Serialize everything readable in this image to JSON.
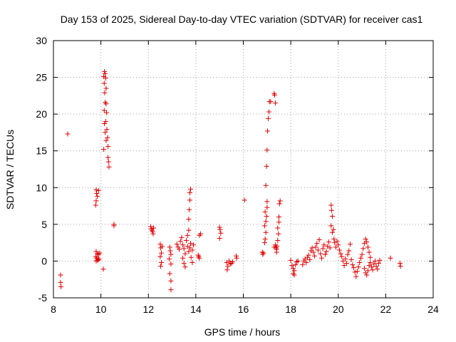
{
  "chart_data": {
    "type": "scatter",
    "title": "Day 153 of 2025, Sidereal Day-to-day VTEC variation (SDTVAR) for receiver cas1",
    "xlabel": "GPS time / hours",
    "ylabel": "SDTVAR / TECUs",
    "xlim": [
      8,
      24
    ],
    "ylim": [
      -5,
      30
    ],
    "x_ticks": [
      8,
      10,
      12,
      14,
      16,
      18,
      20,
      22,
      24
    ],
    "y_ticks": [
      -5,
      0,
      5,
      10,
      15,
      20,
      25,
      30
    ],
    "grid": true,
    "marker": "+",
    "color": "#e00000",
    "series": [
      {
        "name": "SDTVAR",
        "points": [
          [
            8.3,
            -1.9
          ],
          [
            8.3,
            -2.9
          ],
          [
            8.32,
            -3.5
          ],
          [
            8.6,
            17.3
          ],
          [
            9.8,
            9.7
          ],
          [
            9.82,
            9.2
          ],
          [
            9.85,
            8.8
          ],
          [
            9.8,
            8.2
          ],
          [
            9.78,
            7.6
          ],
          [
            9.9,
            9.6
          ],
          [
            9.8,
            1.3
          ],
          [
            9.85,
            1.0
          ],
          [
            9.9,
            0.9
          ],
          [
            9.78,
            0.6
          ],
          [
            9.82,
            0.4
          ],
          [
            9.88,
            0.2
          ],
          [
            9.92,
            0.3
          ],
          [
            9.8,
            0.0
          ],
          [
            9.86,
            0.1
          ],
          [
            9.95,
            1.1
          ],
          [
            10.15,
            25.8
          ],
          [
            10.18,
            25.5
          ],
          [
            10.12,
            25.1
          ],
          [
            10.2,
            24.9
          ],
          [
            10.14,
            24.2
          ],
          [
            10.22,
            23.5
          ],
          [
            10.16,
            22.9
          ],
          [
            10.18,
            21.6
          ],
          [
            10.22,
            21.4
          ],
          [
            10.14,
            20.5
          ],
          [
            10.24,
            20.2
          ],
          [
            10.2,
            19.0
          ],
          [
            10.15,
            18.7
          ],
          [
            10.25,
            17.9
          ],
          [
            10.18,
            17.5
          ],
          [
            10.28,
            16.8
          ],
          [
            10.22,
            16.4
          ],
          [
            10.12,
            15.2
          ],
          [
            10.3,
            15.6
          ],
          [
            10.3,
            14.1
          ],
          [
            10.32,
            13.5
          ],
          [
            10.34,
            12.8
          ],
          [
            10.1,
            -1.1
          ],
          [
            10.55,
            5.0
          ],
          [
            10.55,
            4.8
          ],
          [
            12.1,
            4.7
          ],
          [
            12.12,
            4.4
          ],
          [
            12.15,
            4.2
          ],
          [
            12.18,
            4.0
          ],
          [
            12.2,
            3.7
          ],
          [
            12.22,
            4.5
          ],
          [
            12.5,
            2.3
          ],
          [
            12.52,
            1.8
          ],
          [
            12.55,
            1.1
          ],
          [
            12.5,
            0.6
          ],
          [
            12.55,
            -0.2
          ],
          [
            12.52,
            -0.7
          ],
          [
            12.58,
            2.0
          ],
          [
            12.9,
            1.9
          ],
          [
            12.92,
            1.4
          ],
          [
            12.95,
            0.9
          ],
          [
            12.88,
            0.3
          ],
          [
            12.95,
            -0.4
          ],
          [
            12.9,
            -1.7
          ],
          [
            12.95,
            -2.7
          ],
          [
            12.95,
            -3.9
          ],
          [
            13.2,
            2.3
          ],
          [
            13.25,
            1.9
          ],
          [
            13.3,
            1.6
          ],
          [
            13.35,
            2.7
          ],
          [
            13.4,
            3.2
          ],
          [
            13.45,
            2.2
          ],
          [
            13.5,
            1.7
          ],
          [
            13.55,
            1.0
          ],
          [
            13.45,
            0.4
          ],
          [
            13.5,
            -0.3
          ],
          [
            13.55,
            -0.8
          ],
          [
            13.6,
            2.8
          ],
          [
            13.65,
            3.5
          ],
          [
            13.7,
            4.2
          ],
          [
            13.65,
            2.0
          ],
          [
            13.7,
            1.3
          ],
          [
            13.75,
            1.8
          ],
          [
            13.78,
            2.4
          ],
          [
            13.7,
            5.7
          ],
          [
            13.72,
            7.0
          ],
          [
            13.75,
            8.3
          ],
          [
            13.75,
            9.3
          ],
          [
            13.78,
            9.8
          ],
          [
            13.8,
            0.5
          ],
          [
            13.85,
            1.5
          ],
          [
            13.9,
            2.2
          ],
          [
            13.85,
            -0.2
          ],
          [
            14.1,
            0.8
          ],
          [
            14.12,
            0.6
          ],
          [
            14.15,
            0.4
          ],
          [
            14.2,
            3.7
          ],
          [
            14.15,
            3.5
          ],
          [
            15.0,
            4.6
          ],
          [
            15.02,
            4.3
          ],
          [
            15.05,
            3.8
          ],
          [
            15.0,
            3.1
          ],
          [
            15.3,
            -0.2
          ],
          [
            15.35,
            -0.7
          ],
          [
            15.32,
            -1.2
          ],
          [
            15.4,
            0.0
          ],
          [
            15.45,
            -0.4
          ],
          [
            15.5,
            -0.3
          ],
          [
            15.55,
            -0.1
          ],
          [
            15.7,
            0.7
          ],
          [
            15.72,
            0.4
          ],
          [
            16.05,
            8.3
          ],
          [
            16.8,
            1.2
          ],
          [
            16.82,
            0.9
          ],
          [
            16.85,
            1.1
          ],
          [
            16.9,
            2.5
          ],
          [
            16.92,
            3.0
          ],
          [
            16.95,
            3.9
          ],
          [
            16.9,
            4.8
          ],
          [
            16.95,
            5.4
          ],
          [
            16.98,
            6.1
          ],
          [
            16.92,
            6.7
          ],
          [
            17.0,
            7.3
          ],
          [
            17.0,
            8.1
          ],
          [
            16.95,
            10.3
          ],
          [
            16.98,
            12.9
          ],
          [
            17.0,
            15.1
          ],
          [
            17.02,
            17.7
          ],
          [
            17.05,
            19.4
          ],
          [
            17.08,
            20.3
          ],
          [
            17.1,
            21.7
          ],
          [
            17.15,
            21.7
          ],
          [
            17.3,
            22.8
          ],
          [
            17.32,
            22.6
          ],
          [
            17.35,
            21.5
          ],
          [
            17.3,
            1.9
          ],
          [
            17.35,
            2.2
          ],
          [
            17.4,
            1.6
          ],
          [
            17.42,
            2.0
          ],
          [
            17.45,
            2.8
          ],
          [
            17.48,
            3.7
          ],
          [
            17.45,
            4.5
          ],
          [
            17.5,
            5.3
          ],
          [
            17.5,
            6.0
          ],
          [
            17.52,
            7.8
          ],
          [
            17.55,
            8.2
          ],
          [
            17.4,
            1.2
          ],
          [
            17.38,
            1.8
          ],
          [
            18.0,
            0.1
          ],
          [
            18.05,
            -0.6
          ],
          [
            18.1,
            -1.0
          ],
          [
            18.15,
            -1.3
          ],
          [
            18.2,
            -0.5
          ],
          [
            18.25,
            -0.1
          ],
          [
            18.1,
            -1.7
          ],
          [
            18.15,
            -1.9
          ],
          [
            18.3,
            0.0
          ],
          [
            18.5,
            -0.5
          ],
          [
            18.55,
            0.0
          ],
          [
            18.6,
            0.3
          ],
          [
            18.65,
            -0.2
          ],
          [
            18.7,
            0.5
          ],
          [
            18.75,
            0.8
          ],
          [
            18.8,
            0.2
          ],
          [
            18.85,
            1.4
          ],
          [
            18.9,
            1.8
          ],
          [
            18.95,
            1.2
          ],
          [
            19.0,
            0.7
          ],
          [
            19.05,
            1.9
          ],
          [
            19.1,
            2.4
          ],
          [
            19.15,
            1.5
          ],
          [
            19.2,
            2.9
          ],
          [
            19.25,
            1.0
          ],
          [
            19.3,
            0.4
          ],
          [
            19.35,
            1.7
          ],
          [
            19.4,
            2.2
          ],
          [
            19.45,
            0.9
          ],
          [
            19.5,
            1.3
          ],
          [
            19.55,
            2.0
          ],
          [
            19.6,
            2.6
          ],
          [
            19.65,
            1.8
          ],
          [
            19.7,
            7.6
          ],
          [
            19.72,
            6.9
          ],
          [
            19.75,
            6.1
          ],
          [
            19.7,
            4.8
          ],
          [
            19.75,
            3.9
          ],
          [
            19.8,
            4.3
          ],
          [
            19.82,
            3.0
          ],
          [
            19.85,
            2.5
          ],
          [
            19.9,
            1.9
          ],
          [
            19.95,
            2.7
          ],
          [
            20.0,
            2.2
          ],
          [
            20.05,
            1.5
          ],
          [
            20.1,
            1.0
          ],
          [
            20.15,
            0.6
          ],
          [
            20.2,
            0.0
          ],
          [
            20.25,
            -0.6
          ],
          [
            20.3,
            0.3
          ],
          [
            20.35,
            -0.3
          ],
          [
            20.4,
            0.9
          ],
          [
            20.45,
            1.4
          ],
          [
            20.5,
            2.3
          ],
          [
            20.55,
            0.2
          ],
          [
            20.6,
            -0.5
          ],
          [
            20.65,
            -0.9
          ],
          [
            20.7,
            -1.5
          ],
          [
            20.75,
            -2.1
          ],
          [
            20.8,
            -1.4
          ],
          [
            20.85,
            -0.8
          ],
          [
            20.9,
            -0.2
          ],
          [
            20.95,
            0.4
          ],
          [
            21.0,
            0.9
          ],
          [
            21.05,
            1.7
          ],
          [
            21.1,
            2.4
          ],
          [
            21.15,
            3.0
          ],
          [
            21.2,
            2.6
          ],
          [
            21.25,
            1.9
          ],
          [
            21.3,
            1.2
          ],
          [
            21.35,
            0.5
          ],
          [
            21.1,
            -1.0
          ],
          [
            21.15,
            -1.6
          ],
          [
            21.2,
            -1.9
          ],
          [
            21.25,
            -1.3
          ],
          [
            21.3,
            -0.6
          ],
          [
            21.35,
            -0.2
          ],
          [
            21.4,
            -0.8
          ],
          [
            21.45,
            -1.2
          ],
          [
            21.5,
            -0.4
          ],
          [
            21.55,
            0.0
          ],
          [
            21.6,
            -0.7
          ],
          [
            21.65,
            -1.1
          ],
          [
            21.7,
            -0.3
          ],
          [
            21.75,
            0.1
          ],
          [
            22.2,
            0.4
          ],
          [
            22.6,
            -0.3
          ],
          [
            22.62,
            -0.7
          ]
        ]
      }
    ]
  }
}
